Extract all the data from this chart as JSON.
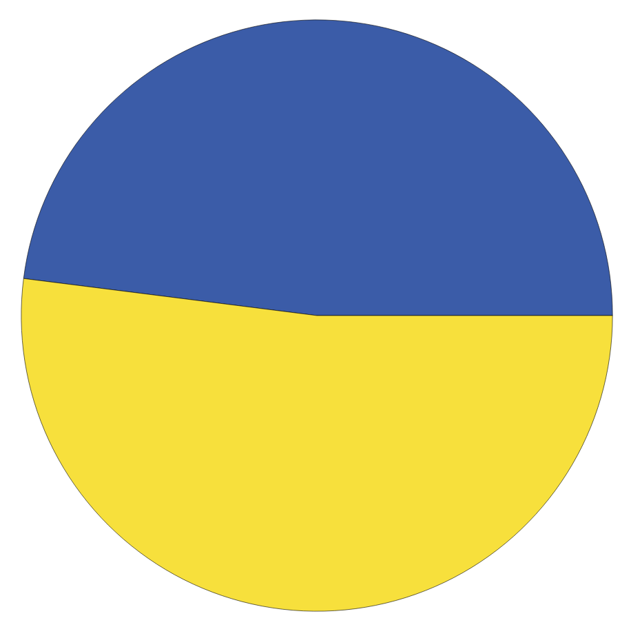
{
  "chart_data": {
    "type": "pie",
    "categories": [
      null,
      null
    ],
    "values": [
      48,
      52
    ],
    "colors": [
      "#3b5ca8",
      "#f7e03c"
    ]
  }
}
